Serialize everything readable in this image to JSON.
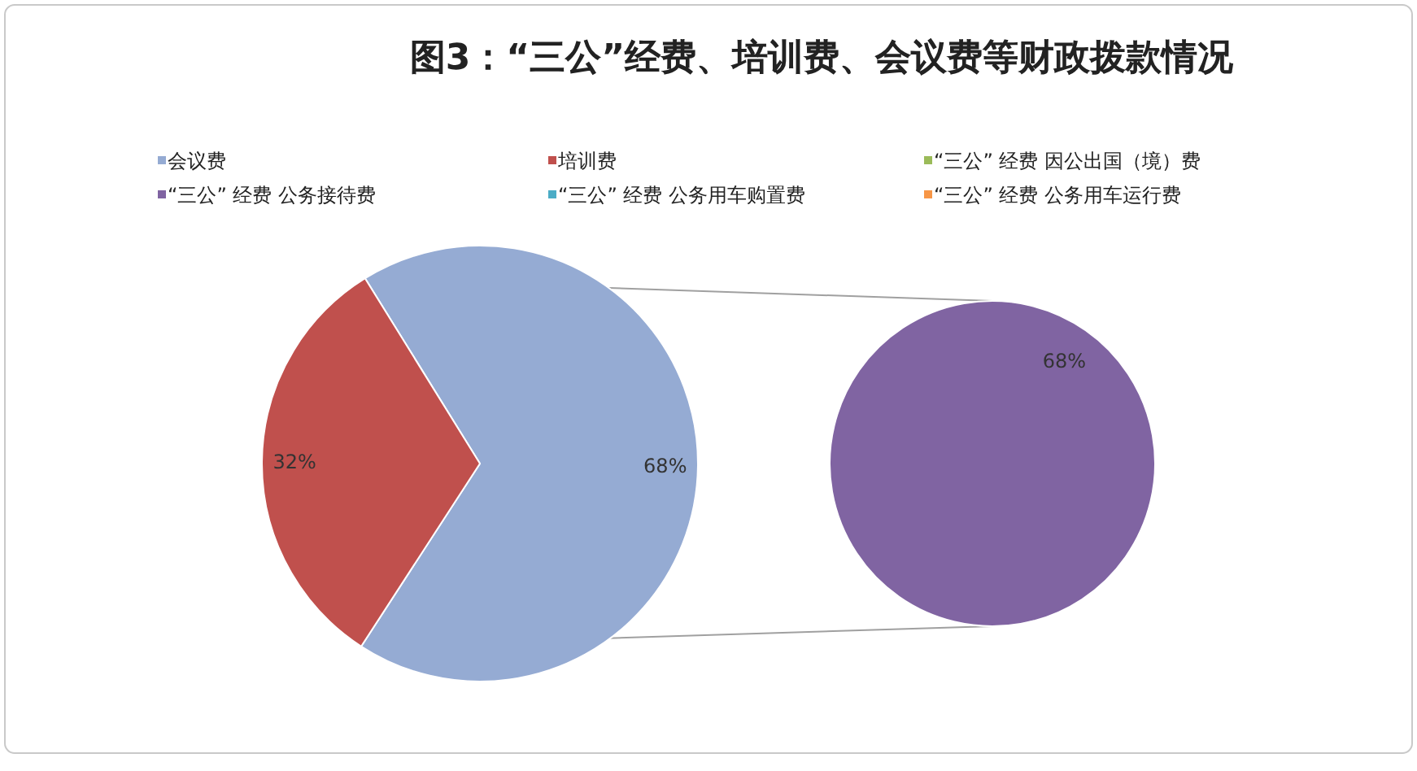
{
  "chart_data": [
    {
      "type": "pie",
      "title": "图3：“三公”经费、培训费、会议费等财政拨款情况",
      "categories": [
        "会议费",
        "培训费",
        "“三公” 经费 因公出国（境）费",
        "“三公” 经费 公务接待费",
        "“三公” 经费 公务用车购置费",
        "“三公” 经费 公务用车运行费"
      ],
      "values": [
        68,
        32,
        0,
        0,
        0,
        0
      ],
      "colors": [
        "#95abd3",
        "#c0504d",
        "#9bbb59",
        "#8064a2",
        "#4bacc6",
        "#f79646"
      ],
      "value_labels": [
        "68%",
        "32%",
        null,
        null,
        null,
        null
      ],
      "legend": "top"
    },
    {
      "type": "pie",
      "categories": [
        null
      ],
      "values": [
        68
      ],
      "colors": [
        "#8064a2"
      ],
      "value_labels": [
        "68%"
      ]
    }
  ]
}
